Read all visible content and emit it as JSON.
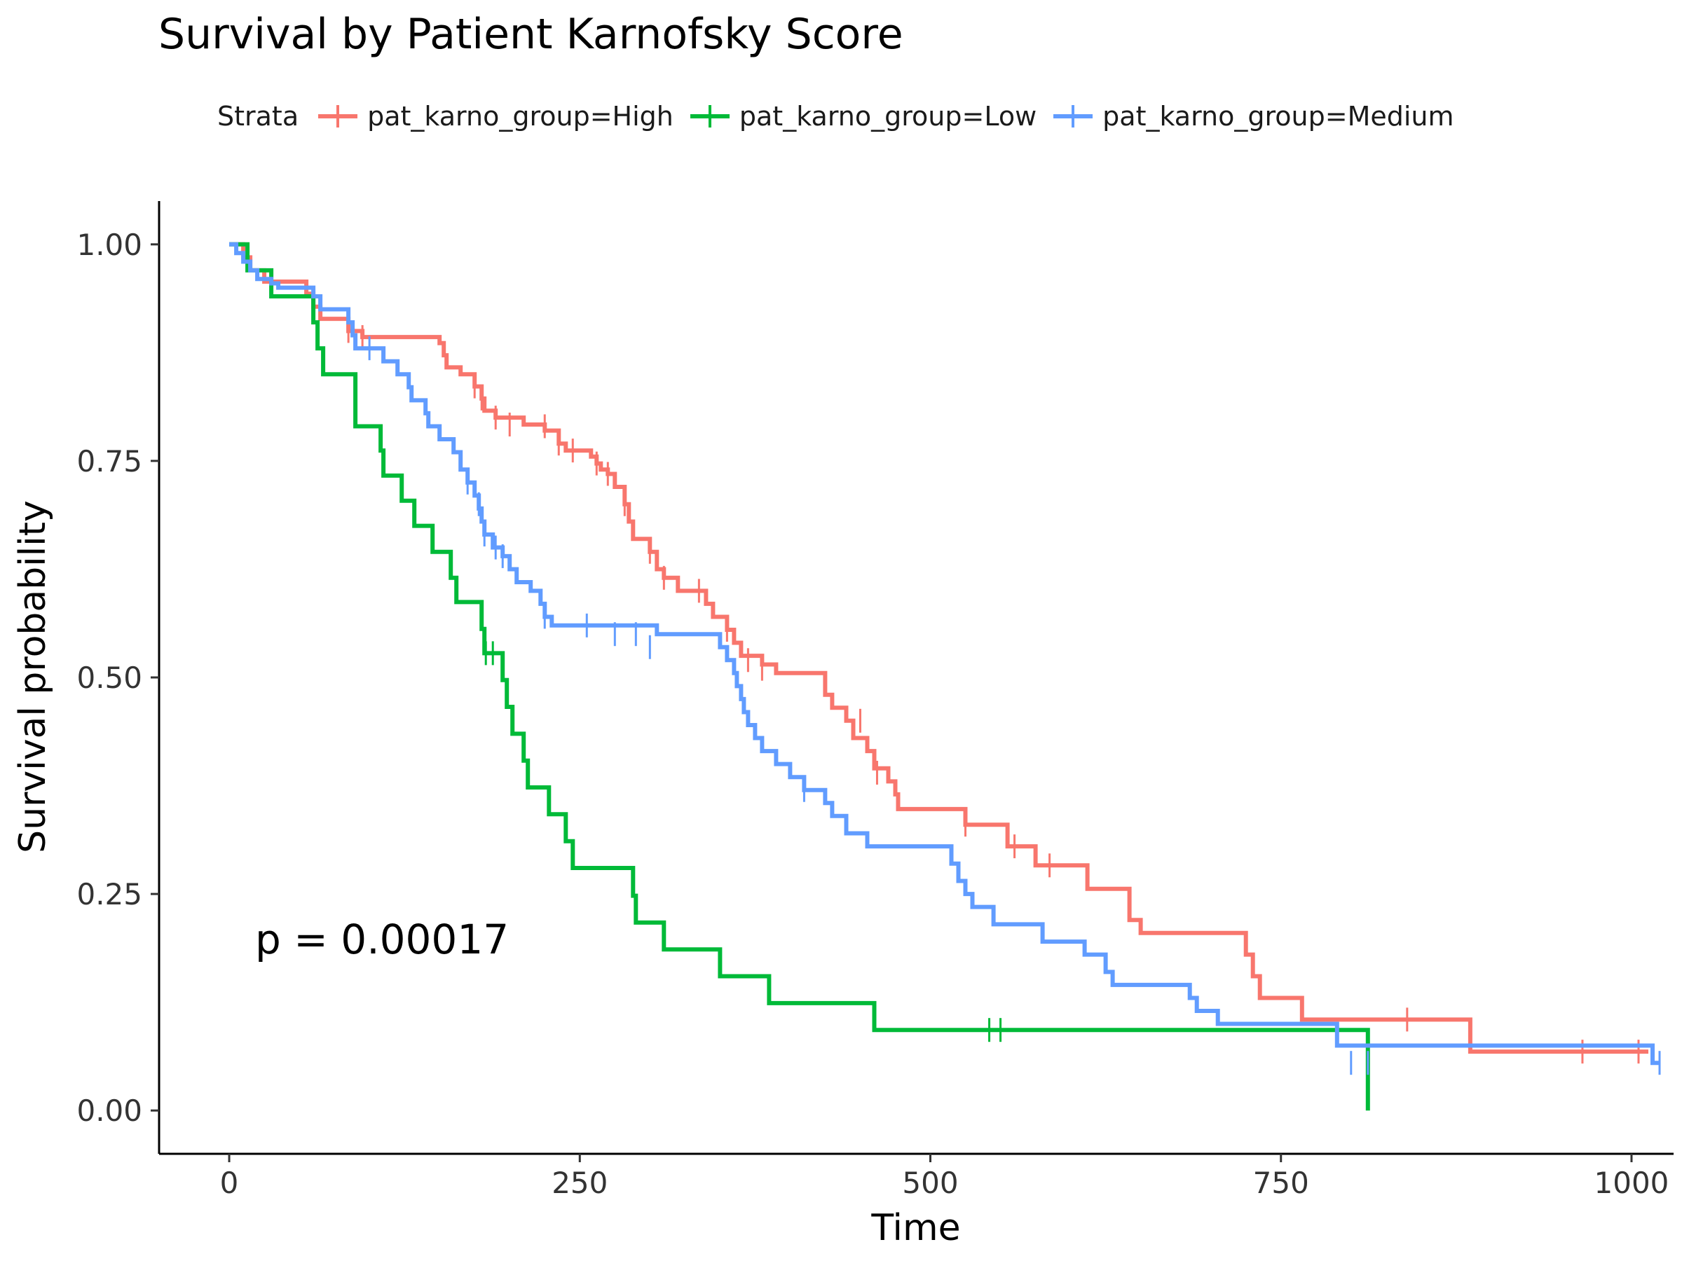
{
  "chart_data": {
    "type": "line",
    "subtype": "kaplan-meier step curve",
    "title": "Survival by Patient Karnofsky Score",
    "xlabel": "Time",
    "ylabel": "Survival probability",
    "xlim": [
      -50,
      1030
    ],
    "ylim": [
      -0.05,
      1.05
    ],
    "x_ticks": [
      0,
      250,
      500,
      750,
      1000
    ],
    "y_ticks": [
      0.0,
      0.25,
      0.5,
      0.75,
      1.0
    ],
    "y_tick_labels": [
      "0.00",
      "0.25",
      "0.50",
      "0.75",
      "1.00"
    ],
    "grid": false,
    "legend": {
      "title": "Strata",
      "position": "top"
    },
    "annotation": "p = 0.00017",
    "series": [
      {
        "name": "pat_karno_group=High",
        "color": "#F8766D",
        "steps": [
          [
            0,
            1.0
          ],
          [
            10,
            0.985
          ],
          [
            15,
            0.97
          ],
          [
            25,
            0.957
          ],
          [
            55,
            0.943
          ],
          [
            60,
            0.928
          ],
          [
            65,
            0.914
          ],
          [
            85,
            0.9
          ],
          [
            95,
            0.893
          ],
          [
            150,
            0.886
          ],
          [
            153,
            0.872
          ],
          [
            155,
            0.858
          ],
          [
            165,
            0.85
          ],
          [
            175,
            0.836
          ],
          [
            180,
            0.822
          ],
          [
            182,
            0.808
          ],
          [
            190,
            0.8
          ],
          [
            210,
            0.792
          ],
          [
            225,
            0.785
          ],
          [
            235,
            0.77
          ],
          [
            240,
            0.762
          ],
          [
            258,
            0.755
          ],
          [
            262,
            0.747
          ],
          [
            265,
            0.74
          ],
          [
            270,
            0.735
          ],
          [
            275,
            0.72
          ],
          [
            282,
            0.7
          ],
          [
            285,
            0.68
          ],
          [
            288,
            0.66
          ],
          [
            300,
            0.645
          ],
          [
            305,
            0.625
          ],
          [
            310,
            0.615
          ],
          [
            320,
            0.6
          ],
          [
            340,
            0.585
          ],
          [
            345,
            0.57
          ],
          [
            355,
            0.555
          ],
          [
            360,
            0.54
          ],
          [
            365,
            0.525
          ],
          [
            380,
            0.515
          ],
          [
            390,
            0.505
          ],
          [
            425,
            0.48
          ],
          [
            430,
            0.465
          ],
          [
            440,
            0.45
          ],
          [
            445,
            0.43
          ],
          [
            455,
            0.415
          ],
          [
            460,
            0.395
          ],
          [
            470,
            0.38
          ],
          [
            475,
            0.365
          ],
          [
            477,
            0.348
          ],
          [
            525,
            0.33
          ],
          [
            555,
            0.305
          ],
          [
            575,
            0.283
          ],
          [
            612,
            0.256
          ],
          [
            642,
            0.22
          ],
          [
            650,
            0.205
          ],
          [
            725,
            0.18
          ],
          [
            730,
            0.155
          ],
          [
            735,
            0.13
          ],
          [
            765,
            0.105
          ],
          [
            885,
            0.068
          ]
        ],
        "end": 1012,
        "censored": [
          [
            85,
            0.9
          ],
          [
            95,
            0.893
          ],
          [
            175,
            0.836
          ],
          [
            180,
            0.822
          ],
          [
            190,
            0.8
          ],
          [
            200,
            0.792
          ],
          [
            225,
            0.79
          ],
          [
            235,
            0.77
          ],
          [
            245,
            0.762
          ],
          [
            262,
            0.747
          ],
          [
            270,
            0.735
          ],
          [
            282,
            0.7
          ],
          [
            300,
            0.645
          ],
          [
            310,
            0.615
          ],
          [
            335,
            0.6
          ],
          [
            355,
            0.555
          ],
          [
            370,
            0.52
          ],
          [
            380,
            0.51
          ],
          [
            450,
            0.45
          ],
          [
            462,
            0.39
          ],
          [
            525,
            0.33
          ],
          [
            560,
            0.305
          ],
          [
            585,
            0.283
          ],
          [
            840,
            0.105
          ],
          [
            965,
            0.068
          ],
          [
            1005,
            0.068
          ]
        ]
      },
      {
        "name": "pat_karno_group=Low",
        "color": "#00BA38",
        "steps": [
          [
            0,
            1.0
          ],
          [
            13,
            0.97
          ],
          [
            30,
            0.94
          ],
          [
            60,
            0.91
          ],
          [
            63,
            0.88
          ],
          [
            67,
            0.85
          ],
          [
            90,
            0.79
          ],
          [
            108,
            0.762
          ],
          [
            110,
            0.733
          ],
          [
            123,
            0.704
          ],
          [
            132,
            0.675
          ],
          [
            145,
            0.645
          ],
          [
            158,
            0.615
          ],
          [
            162,
            0.587
          ],
          [
            180,
            0.556
          ],
          [
            182,
            0.528
          ],
          [
            195,
            0.497
          ],
          [
            198,
            0.466
          ],
          [
            202,
            0.435
          ],
          [
            210,
            0.404
          ],
          [
            213,
            0.373
          ],
          [
            228,
            0.342
          ],
          [
            240,
            0.311
          ],
          [
            245,
            0.28
          ],
          [
            288,
            0.248
          ],
          [
            290,
            0.217
          ],
          [
            310,
            0.186
          ],
          [
            350,
            0.155
          ],
          [
            385,
            0.124
          ],
          [
            460,
            0.093
          ],
          [
            812,
            0.0
          ]
        ],
        "end": 812,
        "censored": [
          [
            183,
            0.528
          ],
          [
            188,
            0.528
          ],
          [
            542,
            0.093
          ],
          [
            550,
            0.093
          ]
        ]
      },
      {
        "name": "pat_karno_group=Medium",
        "color": "#619CFF",
        "steps": [
          [
            0,
            1.0
          ],
          [
            5,
            0.99
          ],
          [
            10,
            0.98
          ],
          [
            15,
            0.97
          ],
          [
            20,
            0.96
          ],
          [
            30,
            0.955
          ],
          [
            35,
            0.95
          ],
          [
            60,
            0.94
          ],
          [
            65,
            0.925
          ],
          [
            85,
            0.91
          ],
          [
            88,
            0.895
          ],
          [
            90,
            0.88
          ],
          [
            110,
            0.865
          ],
          [
            120,
            0.85
          ],
          [
            128,
            0.835
          ],
          [
            130,
            0.82
          ],
          [
            140,
            0.805
          ],
          [
            142,
            0.79
          ],
          [
            150,
            0.775
          ],
          [
            160,
            0.76
          ],
          [
            165,
            0.74
          ],
          [
            170,
            0.725
          ],
          [
            175,
            0.71
          ],
          [
            178,
            0.695
          ],
          [
            180,
            0.68
          ],
          [
            182,
            0.665
          ],
          [
            188,
            0.65
          ],
          [
            195,
            0.64
          ],
          [
            200,
            0.625
          ],
          [
            205,
            0.61
          ],
          [
            215,
            0.6
          ],
          [
            222,
            0.585
          ],
          [
            225,
            0.57
          ],
          [
            230,
            0.56
          ],
          [
            305,
            0.55
          ],
          [
            350,
            0.535
          ],
          [
            355,
            0.52
          ],
          [
            360,
            0.505
          ],
          [
            362,
            0.49
          ],
          [
            365,
            0.475
          ],
          [
            367,
            0.46
          ],
          [
            370,
            0.445
          ],
          [
            375,
            0.43
          ],
          [
            380,
            0.415
          ],
          [
            390,
            0.4
          ],
          [
            400,
            0.385
          ],
          [
            410,
            0.37
          ],
          [
            425,
            0.355
          ],
          [
            430,
            0.34
          ],
          [
            440,
            0.32
          ],
          [
            455,
            0.305
          ],
          [
            515,
            0.285
          ],
          [
            520,
            0.265
          ],
          [
            525,
            0.25
          ],
          [
            530,
            0.235
          ],
          [
            545,
            0.215
          ],
          [
            580,
            0.195
          ],
          [
            610,
            0.18
          ],
          [
            625,
            0.16
          ],
          [
            630,
            0.145
          ],
          [
            685,
            0.13
          ],
          [
            690,
            0.115
          ],
          [
            705,
            0.1
          ],
          [
            790,
            0.075
          ],
          [
            1015,
            0.055
          ]
        ],
        "end": 1020,
        "censored": [
          [
            100,
            0.88
          ],
          [
            170,
            0.725
          ],
          [
            178,
            0.7
          ],
          [
            182,
            0.665
          ],
          [
            190,
            0.65
          ],
          [
            195,
            0.64
          ],
          [
            225,
            0.57
          ],
          [
            255,
            0.56
          ],
          [
            275,
            0.55
          ],
          [
            290,
            0.55
          ],
          [
            300,
            0.535
          ],
          [
            410,
            0.37
          ],
          [
            800,
            0.055
          ],
          [
            812,
            0.055
          ],
          [
            1020,
            0.055
          ]
        ]
      }
    ]
  }
}
